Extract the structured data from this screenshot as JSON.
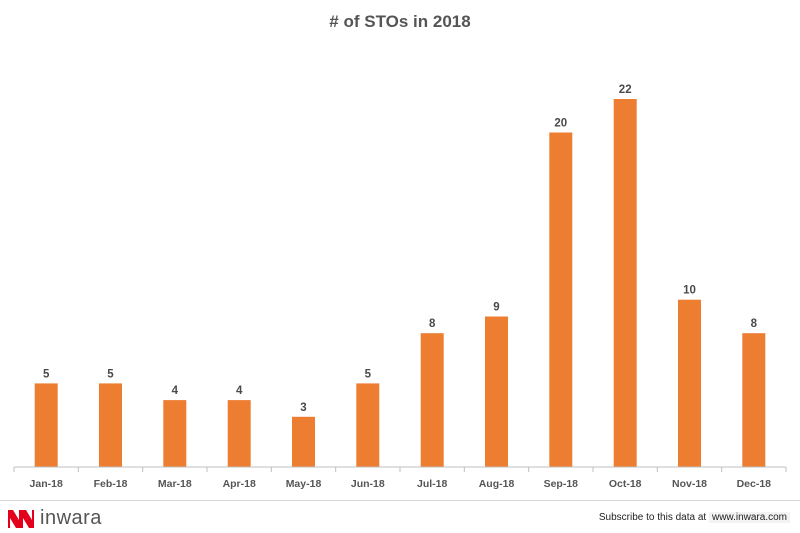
{
  "chart_data": {
    "type": "bar",
    "title": "# of STOs in 2018",
    "categories": [
      "Jan-18",
      "Feb-18",
      "Mar-18",
      "Apr-18",
      "May-18",
      "Jun-18",
      "Jul-18",
      "Aug-18",
      "Sep-18",
      "Oct-18",
      "Nov-18",
      "Dec-18"
    ],
    "values": [
      5,
      5,
      4,
      4,
      3,
      5,
      8,
      9,
      20,
      22,
      10,
      8
    ],
    "ylim": [
      0,
      22
    ],
    "grid": false,
    "bar_color": "#ED7D31",
    "axis_color": "#BFBFBF"
  },
  "footer": {
    "logo_text": "inwara",
    "logo_mark": "inwara-logo-icon",
    "subscribe_text": "Subscribe to this data at",
    "subscribe_link": "www.inwara.com"
  }
}
